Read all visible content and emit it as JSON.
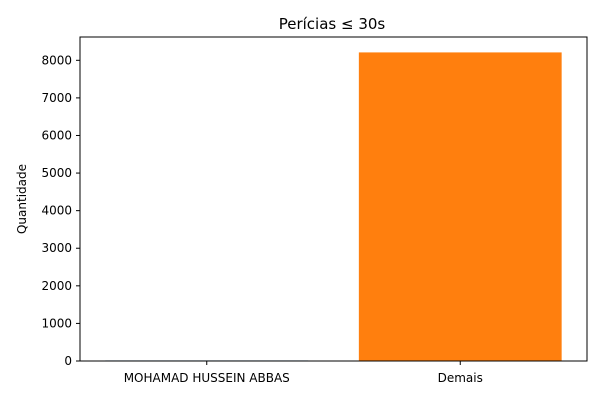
{
  "chart_data": {
    "type": "bar",
    "title": "Perícias ≤ 30s",
    "xlabel": "",
    "ylabel": "Quantidade",
    "categories": [
      "MOHAMAD HUSSEIN ABBAS",
      "Demais"
    ],
    "values": [
      15,
      8210
    ],
    "colors": [
      "#1f77b4",
      "#ff7f0e"
    ],
    "ylim": [
      0,
      8620
    ],
    "yticks": [
      0,
      1000,
      2000,
      3000,
      4000,
      5000,
      6000,
      7000,
      8000
    ],
    "grid": false,
    "legend": "none"
  }
}
